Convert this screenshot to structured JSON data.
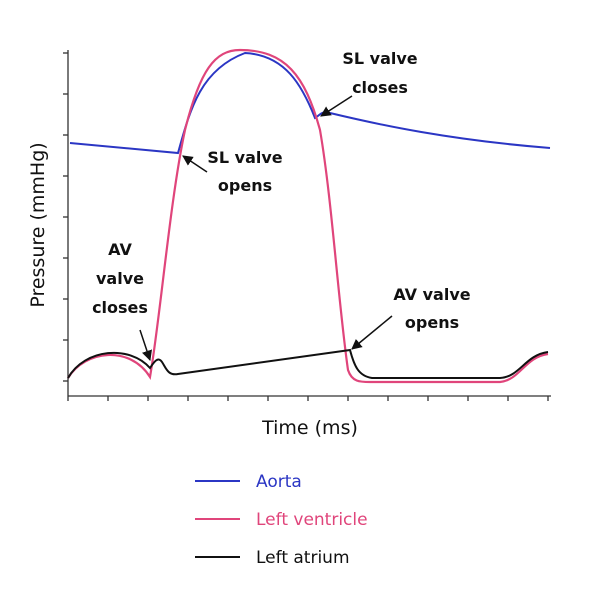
{
  "diagram": {
    "x_axis_label": "Time (ms)",
    "y_axis_label": "Pressure (mmHg)",
    "annotations": [
      {
        "lines": [
          "SL valve",
          "closes"
        ]
      },
      {
        "lines": [
          "SL valve",
          "opens"
        ]
      },
      {
        "lines": [
          "AV",
          "valve",
          "closes"
        ]
      },
      {
        "lines": [
          "AV valve",
          "opens"
        ]
      }
    ],
    "legend": [
      {
        "name": "Aorta",
        "color": "#2b36c4"
      },
      {
        "name": "Left ventricle",
        "color": "#e0457b"
      },
      {
        "name": "Left atrium",
        "color": "#111111"
      }
    ]
  }
}
